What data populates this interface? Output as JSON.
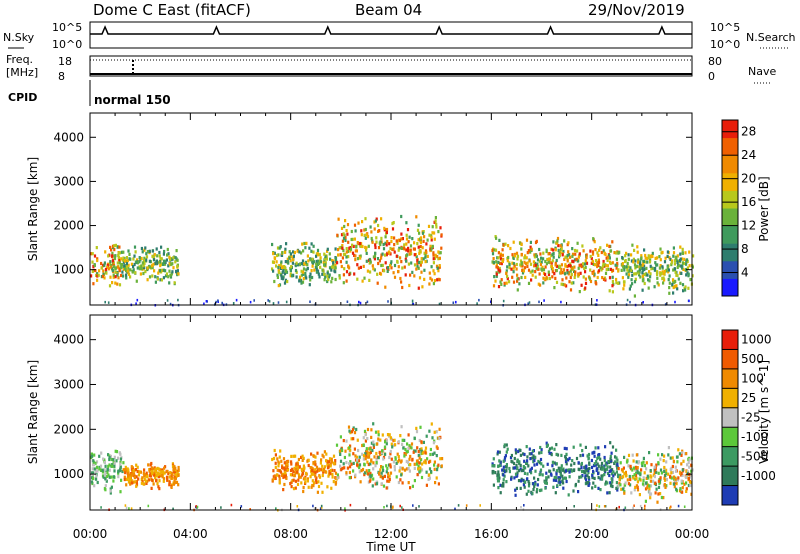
{
  "header": {
    "station": "Dome C East (fitACF)",
    "beam": "Beam 04",
    "date": "29/Nov/2019"
  },
  "top_panels": {
    "nsky_label": "N.Sky",
    "nsearch_label": "N.Search",
    "noise_ticks": [
      "10^5",
      "10^0"
    ],
    "freq_label": "Freq.",
    "freq_unit": "[MHz]",
    "freq_ticks": [
      "18",
      "8"
    ],
    "nave_label": "Nave",
    "nave_ticks": [
      "80",
      "0"
    ],
    "cpid_label": "CPID",
    "cpid_value": "normal 150"
  },
  "chart_data": [
    {
      "type": "heatmap",
      "title": "",
      "xlabel": "Time UT",
      "ylabel": "Slant Range [km]",
      "x_ticks": [
        "00:00",
        "04:00",
        "08:00",
        "12:00",
        "16:00",
        "20:00",
        "00:00"
      ],
      "xlim_hours": [
        0,
        24
      ],
      "ylim_km": [
        200,
        4550
      ],
      "y_ticks": [
        1000,
        2000,
        3000,
        4000
      ],
      "colorbar": {
        "label": "Power [dB]",
        "ticks": [
          "4",
          "8",
          "12",
          "16",
          "20",
          "24",
          "28"
        ],
        "range": [
          0,
          30
        ],
        "colors": [
          "#1a1aff",
          "#2a4fb0",
          "#2e7d6e",
          "#3f9a5c",
          "#6ab23a",
          "#b8c81c",
          "#f0b000",
          "#f08a00",
          "#f06000",
          "#e81e0a"
        ]
      },
      "echo_regions": [
        {
          "t0": 0.0,
          "t1": 1.2,
          "r0": 600,
          "r1": 1700,
          "level": "high"
        },
        {
          "t0": 1.2,
          "t1": 3.5,
          "r0": 700,
          "r1": 1600,
          "level": "mid"
        },
        {
          "t0": 7.2,
          "t1": 9.8,
          "r0": 600,
          "r1": 1700,
          "level": "mid"
        },
        {
          "t0": 9.8,
          "t1": 14.0,
          "r0": 600,
          "r1": 2300,
          "level": "high"
        },
        {
          "t0": 16.0,
          "t1": 21.0,
          "r0": 500,
          "r1": 1800,
          "level": "high"
        },
        {
          "t0": 21.0,
          "t1": 24.0,
          "r0": 400,
          "r1": 1700,
          "level": "mid"
        }
      ]
    },
    {
      "type": "heatmap",
      "title": "",
      "xlabel": "Time UT",
      "ylabel": "Slant Range [km]",
      "x_ticks": [
        "00:00",
        "04:00",
        "08:00",
        "12:00",
        "16:00",
        "20:00",
        "00:00"
      ],
      "xlim_hours": [
        0,
        24
      ],
      "ylim_km": [
        200,
        4550
      ],
      "y_ticks": [
        1000,
        2000,
        3000,
        4000
      ],
      "colorbar": {
        "label": "Velocity [m s^-1]",
        "ticks": [
          "1000",
          "500",
          "100",
          "25",
          "-25",
          "-100",
          "-500",
          "-1000"
        ],
        "colors": [
          "#1e3cb4",
          "#2f7a5a",
          "#3c9a62",
          "#5cc83a",
          "#c0c0c0",
          "#f0b000",
          "#f08a00",
          "#f05a00",
          "#e81e0a"
        ]
      },
      "echo_regions": [
        {
          "t0": 0.0,
          "t1": 1.3,
          "r0": 600,
          "r1": 1700,
          "level": "green"
        },
        {
          "t0": 1.3,
          "t1": 3.5,
          "r0": 700,
          "r1": 1300,
          "level": "orange"
        },
        {
          "t0": 7.2,
          "t1": 9.8,
          "r0": 600,
          "r1": 1600,
          "level": "orange"
        },
        {
          "t0": 9.8,
          "t1": 14.0,
          "r0": 600,
          "r1": 2200,
          "level": "mixed"
        },
        {
          "t0": 16.0,
          "t1": 21.0,
          "r0": 500,
          "r1": 1800,
          "level": "teal"
        },
        {
          "t0": 21.0,
          "t1": 24.0,
          "r0": 400,
          "r1": 1700,
          "level": "mixed"
        }
      ]
    }
  ]
}
